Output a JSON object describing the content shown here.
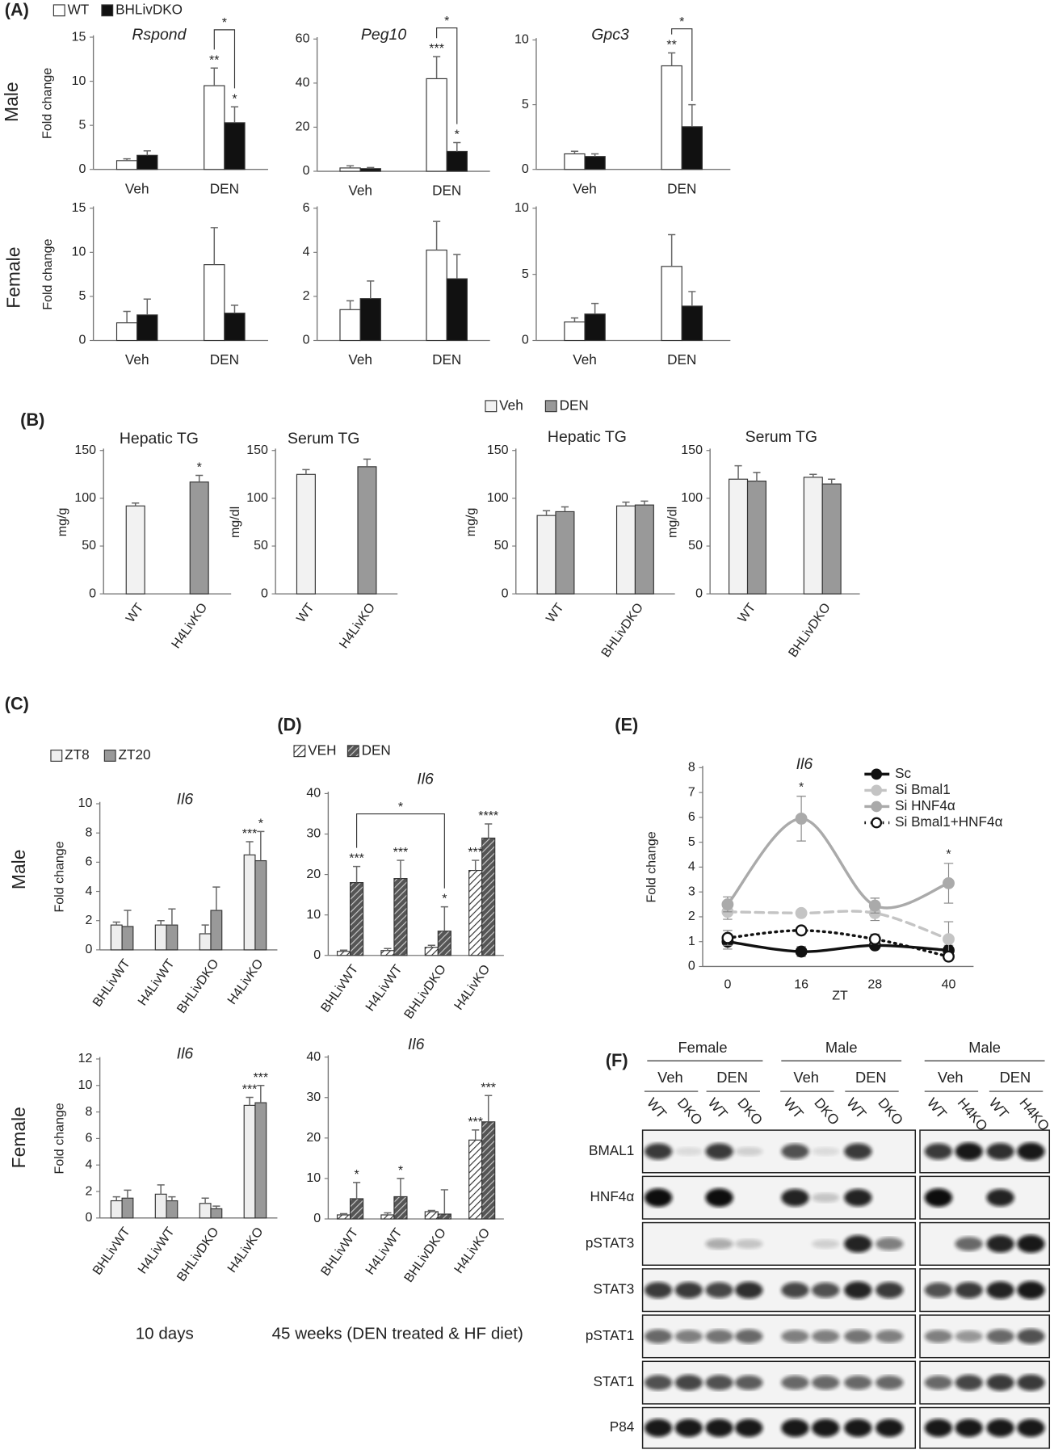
{
  "panel_labels": [
    "(A)",
    "(B)",
    "(C)",
    "(D)",
    "(E)",
    "(F)"
  ],
  "row_labels": {
    "A": [
      "Male",
      "Female"
    ],
    "C": [
      "Male",
      "Female"
    ]
  },
  "captions": [
    "10 days",
    "45 weeks (DEN treated & HF diet)"
  ],
  "chart_data": [
    {
      "type": "bar",
      "title": "Rspond",
      "italic_title": true,
      "ylabel": "Fold change",
      "categories": [
        "Veh",
        "DEN"
      ],
      "series": [
        {
          "name": "WT",
          "color": "#ffffff",
          "values": [
            1.0,
            9.5
          ],
          "errors": [
            0.2,
            2.0
          ],
          "stars": [
            null,
            "**"
          ]
        },
        {
          "name": "BHLivDKO",
          "color": "#111111",
          "values": [
            1.6,
            5.3
          ],
          "errors": [
            0.5,
            1.8
          ],
          "stars": [
            null,
            "*"
          ]
        }
      ],
      "ylim": [
        0,
        15
      ],
      "yticks": [
        0,
        5,
        10,
        15
      ],
      "bracket": "*"
    },
    {
      "type": "bar",
      "title": "Peg10",
      "italic_title": true,
      "categories": [
        "Veh",
        "DEN"
      ],
      "series": [
        {
          "color": "#ffffff",
          "values": [
            1.5,
            42
          ],
          "errors": [
            1,
            10
          ],
          "stars": [
            null,
            "***"
          ]
        },
        {
          "color": "#111111",
          "values": [
            1.2,
            9
          ],
          "errors": [
            0.5,
            4
          ],
          "stars": [
            null,
            "*"
          ]
        }
      ],
      "ylim": [
        0,
        60
      ],
      "yticks": [
        0,
        20,
        40,
        60
      ],
      "bracket": "*"
    },
    {
      "type": "bar",
      "title": "Gpc3",
      "italic_title": true,
      "categories": [
        "Veh",
        "DEN"
      ],
      "series": [
        {
          "color": "#ffffff",
          "values": [
            1.2,
            8.0
          ],
          "errors": [
            0.2,
            1.0
          ],
          "stars": [
            null,
            "**"
          ]
        },
        {
          "color": "#111111",
          "values": [
            1.0,
            3.3
          ],
          "errors": [
            0.2,
            1.7
          ]
        }
      ],
      "ylim": [
        0,
        10
      ],
      "yticks": [
        0,
        5,
        10
      ],
      "bracket": "*"
    },
    {
      "type": "bar",
      "ylabel": "Fold change",
      "categories": [
        "Veh",
        "DEN"
      ],
      "series": [
        {
          "color": "#ffffff",
          "values": [
            2.0,
            8.6
          ],
          "errors": [
            1.3,
            4.2
          ]
        },
        {
          "color": "#111111",
          "values": [
            2.9,
            3.1
          ],
          "errors": [
            1.8,
            0.9
          ]
        }
      ],
      "ylim": [
        0,
        15
      ],
      "yticks": [
        0,
        5,
        10,
        15
      ]
    },
    {
      "type": "bar",
      "categories": [
        "Veh",
        "DEN"
      ],
      "series": [
        {
          "color": "#ffffff",
          "values": [
            1.4,
            4.1
          ],
          "errors": [
            0.4,
            1.3
          ]
        },
        {
          "color": "#111111",
          "values": [
            1.9,
            2.8
          ],
          "errors": [
            0.8,
            1.1
          ]
        }
      ],
      "ylim": [
        0,
        6
      ],
      "yticks": [
        0,
        2,
        4,
        6
      ]
    },
    {
      "type": "bar",
      "categories": [
        "Veh",
        "DEN"
      ],
      "series": [
        {
          "color": "#ffffff",
          "values": [
            1.4,
            5.6
          ],
          "errors": [
            0.3,
            2.4
          ]
        },
        {
          "color": "#111111",
          "values": [
            2.0,
            2.6
          ],
          "errors": [
            0.8,
            1.1
          ]
        }
      ],
      "ylim": [
        0,
        10
      ],
      "yticks": [
        0,
        5,
        10
      ]
    },
    {
      "type": "bar",
      "title": "Hepatic TG",
      "ylabel": "mg/g",
      "categories": [
        "WT",
        "H4LivKO"
      ],
      "values": [
        92,
        117
      ],
      "errors": [
        3,
        7
      ],
      "stars": [
        null,
        "*"
      ],
      "colors": [
        "#f2f2f2",
        "#999999"
      ],
      "ylim": [
        0,
        150
      ],
      "yticks": [
        0,
        50,
        100,
        150
      ]
    },
    {
      "type": "bar",
      "title": "Serum TG",
      "ylabel": "mg/dl",
      "categories": [
        "WT",
        "H4LivKO"
      ],
      "values": [
        125,
        133
      ],
      "errors": [
        5,
        8
      ],
      "colors": [
        "#f2f2f2",
        "#999999"
      ],
      "ylim": [
        0,
        150
      ],
      "yticks": [
        0,
        50,
        100,
        150
      ]
    },
    {
      "type": "bar",
      "title": "Hepatic TG",
      "ylabel": "mg/g",
      "categories": [
        "WT",
        "BHLivDKO"
      ],
      "series": [
        {
          "name": "Veh",
          "color": "#f2f2f2",
          "values": [
            82,
            92
          ],
          "errors": [
            5,
            4
          ]
        },
        {
          "name": "DEN",
          "color": "#999999",
          "values": [
            86,
            93
          ],
          "errors": [
            5,
            4
          ]
        }
      ],
      "ylim": [
        0,
        150
      ],
      "yticks": [
        0,
        50,
        100,
        150
      ]
    },
    {
      "type": "bar",
      "title": "Serum TG",
      "ylabel": "mg/dl",
      "categories": [
        "WT",
        "BHLivDKO"
      ],
      "series": [
        {
          "color": "#f2f2f2",
          "values": [
            120,
            122
          ],
          "errors": [
            14,
            3
          ]
        },
        {
          "color": "#999999",
          "values": [
            118,
            115
          ],
          "errors": [
            9,
            5
          ]
        }
      ],
      "ylim": [
        0,
        150
      ],
      "yticks": [
        0,
        50,
        100,
        150
      ]
    },
    {
      "type": "bar",
      "title": "Il6",
      "italic_title": true,
      "ylabel": "Fold change",
      "categories": [
        "BHLivWT",
        "H4LivWT",
        "BHLivDKO",
        "H4LivKO"
      ],
      "series": [
        {
          "name": "ZT8",
          "color": "#eeeeee",
          "values": [
            1.7,
            1.7,
            1.1,
            6.5
          ],
          "errors": [
            0.2,
            0.3,
            0.6,
            0.9
          ],
          "stars": [
            null,
            null,
            null,
            "***"
          ]
        },
        {
          "name": "ZT20",
          "color": "#999999",
          "values": [
            1.6,
            1.7,
            2.7,
            6.1
          ],
          "errors": [
            1.1,
            1.1,
            1.6,
            2.0
          ],
          "stars": [
            null,
            null,
            null,
            "*"
          ]
        }
      ],
      "ylim": [
        0,
        10
      ],
      "yticks": [
        0,
        2,
        4,
        6,
        8,
        10
      ]
    },
    {
      "type": "bar",
      "title": "Il6",
      "italic_title": true,
      "ylabel": "Fold change",
      "categories": [
        "BHLivWT",
        "H4LivWT",
        "BHLivDKO",
        "H4LivKO"
      ],
      "series": [
        {
          "color": "#eeeeee",
          "values": [
            1.3,
            1.8,
            1.1,
            8.5
          ],
          "errors": [
            0.3,
            0.7,
            0.4,
            0.6
          ],
          "stars": [
            null,
            null,
            null,
            "***"
          ]
        },
        {
          "color": "#999999",
          "values": [
            1.5,
            1.3,
            0.7,
            8.7
          ],
          "errors": [
            0.6,
            0.3,
            0.2,
            1.3
          ],
          "stars": [
            null,
            null,
            null,
            "***"
          ]
        }
      ],
      "ylim": [
        0,
        12
      ],
      "yticks": [
        0,
        2,
        4,
        6,
        8,
        10,
        12
      ]
    },
    {
      "type": "bar",
      "title": "Il6",
      "italic_title": true,
      "categories": [
        "BHLivWT",
        "H4LivWT",
        "BHLivDKO",
        "H4LivKO"
      ],
      "series": [
        {
          "name": "VEH",
          "color": "#ffffff",
          "hatch": true,
          "values": [
            1,
            1.2,
            2,
            21
          ],
          "errors": [
            0.3,
            0.5,
            0.5,
            2.5
          ],
          "stars": [
            null,
            null,
            null,
            "***"
          ]
        },
        {
          "name": "DEN",
          "color": "#555555",
          "hatch": true,
          "values": [
            18,
            19,
            6,
            29
          ],
          "errors": [
            4,
            4.5,
            6,
            3.5
          ],
          "stars": [
            "***",
            "***",
            "*",
            "****"
          ]
        }
      ],
      "ylim": [
        0,
        40
      ],
      "yticks": [
        0,
        10,
        20,
        30,
        40
      ],
      "bracket": "*"
    },
    {
      "type": "bar",
      "title": "Il6",
      "italic_title": true,
      "categories": [
        "BHLivWT",
        "H4LivWT",
        "BHLivDKO",
        "H4LivKO"
      ],
      "series": [
        {
          "color": "#ffffff",
          "hatch": true,
          "values": [
            1,
            1,
            1.8,
            19.5
          ],
          "errors": [
            0.3,
            0.5,
            0.3,
            2.5
          ],
          "stars": [
            null,
            null,
            null,
            "***"
          ]
        },
        {
          "color": "#555555",
          "hatch": true,
          "values": [
            5,
            5.5,
            1.2,
            24
          ],
          "errors": [
            4,
            4.5,
            6,
            6.5
          ],
          "stars": [
            "*",
            "*",
            null,
            "***"
          ]
        }
      ],
      "ylim": [
        0,
        40
      ],
      "yticks": [
        0,
        10,
        20,
        30,
        40
      ]
    },
    {
      "type": "line",
      "title": "Il6",
      "italic_title": true,
      "ylabel": "Fold change",
      "xlabel": "ZT",
      "categories": [
        "0",
        "16",
        "28",
        "40"
      ],
      "series": [
        {
          "name": "Sc",
          "color": "#111111",
          "style": "solid",
          "values": [
            1.0,
            0.6,
            0.85,
            0.65
          ],
          "errors": [
            0.3,
            0.2,
            0.1,
            0.2
          ]
        },
        {
          "name": "Si Bmal1",
          "color": "#c4c4c4",
          "style": "dashed",
          "values": [
            2.2,
            2.15,
            2.15,
            1.1
          ],
          "errors": [
            0.3,
            0.1,
            0.3,
            0.7
          ]
        },
        {
          "name": "Si HNF4α",
          "color": "#aaaaaa",
          "style": "solid",
          "values": [
            2.5,
            5.95,
            2.45,
            3.35
          ],
          "errors": [
            0.3,
            0.9,
            0.3,
            0.8
          ],
          "stars": [
            null,
            "*",
            null,
            "*"
          ]
        },
        {
          "name": "Si Bmal1+HNF4α",
          "color": "#111111",
          "style": "dotted",
          "marker_fill": "#ffffff",
          "values": [
            1.15,
            1.45,
            1.1,
            0.4
          ],
          "errors": [
            0.3,
            0.1,
            0.2,
            0.1
          ]
        }
      ],
      "ylim": [
        0,
        8
      ],
      "yticks": [
        0,
        1,
        2,
        3,
        4,
        5,
        6,
        7,
        8
      ]
    }
  ],
  "blot": {
    "groups": [
      "Female",
      "Male",
      "Male"
    ],
    "treatments": [
      "Veh",
      "DEN",
      "Veh",
      "DEN",
      "Veh",
      "DEN"
    ],
    "lanes": [
      "WT",
      "DKO",
      "WT",
      "DKO",
      "WT",
      "DKO",
      "WT",
      "DKO",
      "WT",
      "H4KO",
      "WT",
      "H4KO"
    ],
    "proteins": [
      "BMAL1",
      "HNF4α",
      "pSTAT3",
      "STAT3",
      "pSTAT1",
      "STAT1",
      "P84"
    ]
  }
}
